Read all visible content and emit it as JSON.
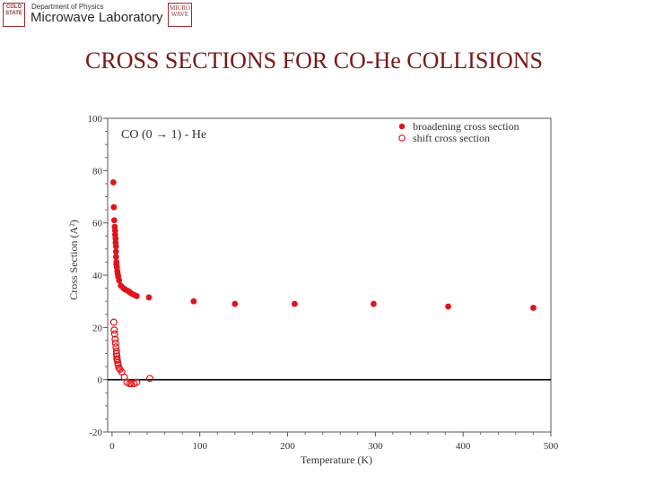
{
  "header": {
    "left_logo": {
      "text": "COLO STATE",
      "lines": [
        "COLO",
        "STATE"
      ]
    },
    "department": "Department of Physics",
    "laboratory": "Microwave Laboratory",
    "right_logo": {
      "text": "MICRO WAVE",
      "lines": [
        "MICRO",
        "WAVE"
      ]
    }
  },
  "slide_title": "CROSS SECTIONS FOR CO-He COLLISIONS",
  "chart_data": {
    "type": "scatter",
    "title": "",
    "annotation": "CO (0 → 1) - He",
    "xlabel": "Temperature (K)",
    "ylabel": "Cross Section (A²)",
    "xlim": [
      -5,
      500
    ],
    "ylim": [
      -20,
      100
    ],
    "xticks": [
      0,
      100,
      200,
      300,
      400,
      500
    ],
    "yticks": [
      -20,
      0,
      20,
      40,
      60,
      80,
      100
    ],
    "zero_line": true,
    "grid": false,
    "legend_position": "top-right",
    "series": [
      {
        "name": "broadening cross section",
        "marker": "filled-circle",
        "color": "#e0141b",
        "points": [
          [
            1.5,
            75.5
          ],
          [
            2,
            66
          ],
          [
            2.5,
            61
          ],
          [
            3,
            58.5
          ],
          [
            3.5,
            57
          ],
          [
            3.5,
            55.5
          ],
          [
            4,
            54
          ],
          [
            4,
            52.5
          ],
          [
            4.5,
            51
          ],
          [
            4.5,
            49
          ],
          [
            4.5,
            47
          ],
          [
            5,
            45
          ],
          [
            5,
            44
          ],
          [
            5.5,
            43
          ],
          [
            6,
            41.5
          ],
          [
            6.5,
            40.5
          ],
          [
            7,
            39.5
          ],
          [
            8,
            38
          ],
          [
            10,
            36
          ],
          [
            13,
            35
          ],
          [
            15,
            34.5
          ],
          [
            18,
            34
          ],
          [
            20,
            33.5
          ],
          [
            22,
            33
          ],
          [
            25,
            32.5
          ],
          [
            28,
            32
          ],
          [
            42,
            31.5
          ],
          [
            93,
            30
          ],
          [
            140,
            29
          ],
          [
            208,
            29
          ],
          [
            298,
            29
          ],
          [
            383,
            28
          ],
          [
            480,
            27.5
          ]
        ]
      },
      {
        "name": "shift cross section",
        "marker": "open-circle",
        "color": "#e0141b",
        "points": [
          [
            2,
            22
          ],
          [
            2.5,
            19
          ],
          [
            3,
            17.5
          ],
          [
            3.5,
            15.5
          ],
          [
            4,
            14
          ],
          [
            4.5,
            12.5
          ],
          [
            5,
            11
          ],
          [
            5,
            10
          ],
          [
            5.5,
            9
          ],
          [
            5.5,
            8
          ],
          [
            6,
            7.5
          ],
          [
            6.5,
            6.5
          ],
          [
            7,
            5.5
          ],
          [
            8,
            4.5
          ],
          [
            9,
            4
          ],
          [
            11,
            3
          ],
          [
            14,
            1
          ],
          [
            17,
            -1
          ],
          [
            20,
            -1.5
          ],
          [
            22,
            -1.5
          ],
          [
            25,
            -1.5
          ],
          [
            28,
            -1
          ],
          [
            43,
            0.5
          ]
        ]
      }
    ]
  }
}
